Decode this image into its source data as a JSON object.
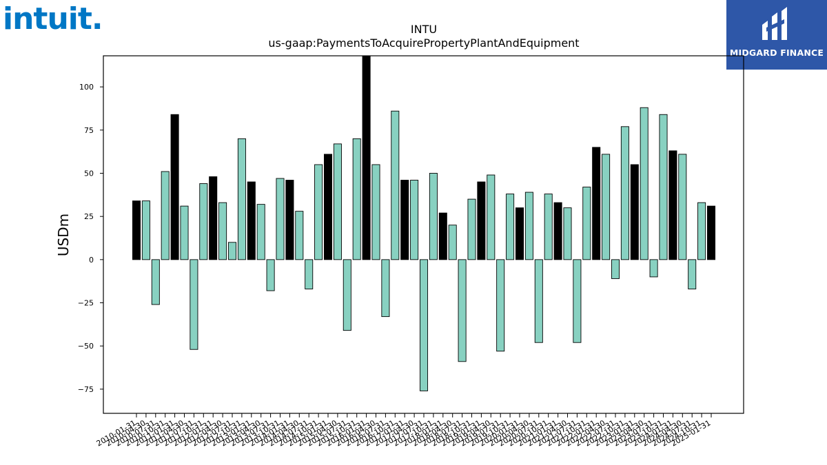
{
  "logos": {
    "left_brand": "intuit.",
    "right_brand": "MIDGARD FINANCE"
  },
  "colors": {
    "positive_alt": "#000000",
    "bar_teal": "#88d1c1",
    "intuit_blue": "#0077c5",
    "midgard_blue": "#2e57a8"
  },
  "chart_data": {
    "type": "bar",
    "title": "INTU",
    "subtitle": "us-gaap:PaymentsToAcquirePropertyPlantAndEquipment",
    "ylabel": "USDm",
    "xlabel": "",
    "ylim": [
      -89,
      118
    ],
    "yticks": [
      -75,
      -50,
      -25,
      0,
      25,
      50,
      75,
      100
    ],
    "categories": [
      "2010-01-31",
      "2010-04-30",
      "2010-07-31",
      "2010-10-31",
      "2011-01-31",
      "2011-04-30",
      "2011-07-31",
      "2011-10-31",
      "2012-01-31",
      "2012-04-30",
      "2012-07-31",
      "2012-10-31",
      "2013-01-31",
      "2013-04-30",
      "2013-07-31",
      "2013-10-31",
      "2014-01-31",
      "2014-04-30",
      "2014-07-31",
      "2014-10-31",
      "2015-01-31",
      "2015-04-30",
      "2015-07-31",
      "2015-10-31",
      "2016-01-31",
      "2016-04-30",
      "2016-07-31",
      "2016-10-31",
      "2017-01-31",
      "2017-04-30",
      "2017-07-31",
      "2017-10-31",
      "2018-01-31",
      "2018-04-30",
      "2018-07-31",
      "2018-10-31",
      "2019-01-31",
      "2019-04-30",
      "2019-07-31",
      "2019-10-31",
      "2020-01-31",
      "2020-04-30",
      "2020-07-31",
      "2020-10-31",
      "2021-01-31",
      "2021-04-30",
      "2021-07-31",
      "2021-10-31",
      "2022-01-31",
      "2022-04-30",
      "2022-07-31",
      "2022-10-31",
      "2023-01-31",
      "2023-04-30",
      "2023-07-31",
      "2023-10-31",
      "2024-01-31",
      "2024-04-30",
      "2024-07-31",
      "2024-10-31",
      "2025-01-31"
    ],
    "values": [
      34,
      34,
      -26,
      51,
      84,
      31,
      -52,
      44,
      48,
      33,
      10,
      70,
      45,
      32,
      -18,
      47,
      46,
      28,
      -17,
      55,
      61,
      67,
      -41,
      70,
      118,
      55,
      -33,
      86,
      46,
      46,
      -76,
      50,
      27,
      20,
      -59,
      35,
      45,
      49,
      -53,
      38,
      30,
      39,
      -48,
      38,
      33,
      30,
      -48,
      42,
      65,
      61,
      -11,
      77,
      55,
      88,
      -10,
      84,
      63,
      61,
      -17,
      33,
      31
    ],
    "black_bar_indices": [
      0,
      4,
      8,
      12,
      16,
      20,
      24,
      28,
      32,
      36,
      40,
      44,
      48,
      52,
      56,
      60
    ],
    "grid": false,
    "legend": "none"
  }
}
